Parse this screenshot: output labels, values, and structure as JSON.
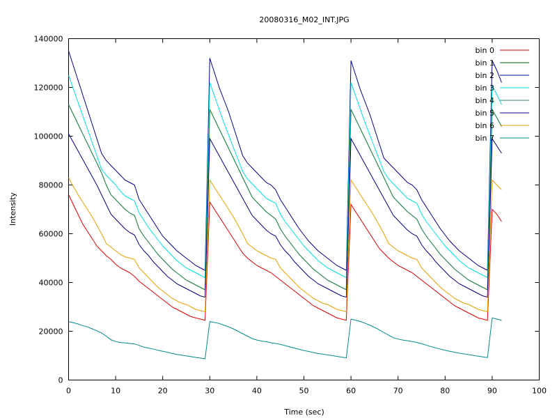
{
  "chart_data": {
    "type": "line",
    "title": "20080316_M02_INT.JPG",
    "xlabel": "Time (sec)",
    "ylabel": "Intensity",
    "xlim": [
      0,
      100
    ],
    "ylim": [
      0,
      140000
    ],
    "x_ticks": [
      0,
      10,
      20,
      30,
      40,
      50,
      60,
      70,
      80,
      90,
      100
    ],
    "y_ticks": [
      0,
      20000,
      40000,
      60000,
      80000,
      100000,
      120000,
      140000
    ],
    "grid": false,
    "legend_position": "top-right",
    "series": [
      {
        "name": "bin 0",
        "color": "#dd0000",
        "values": [
          76000,
          72000,
          68000,
          64000,
          61000,
          58000,
          55000,
          53000,
          51000,
          49500,
          47500,
          46000,
          45000,
          44000,
          42500,
          40500,
          39000,
          37500,
          36000,
          34500,
          33000,
          31500,
          30000,
          29000,
          28000,
          27000,
          26000,
          25500,
          25000,
          24500,
          73000,
          70000,
          67000,
          64000,
          61000,
          58000,
          55000,
          52000,
          50000,
          48500,
          47000,
          46000,
          45000,
          44000,
          42500,
          41000,
          39500,
          38000,
          36500,
          35000,
          33500,
          32000,
          30500,
          29500,
          28500,
          27500,
          26500,
          25500,
          25000,
          24500,
          72000,
          69000,
          66000,
          63000,
          60000,
          57000,
          54000,
          52000,
          50000,
          48500,
          47000,
          46000,
          45000,
          44000,
          42500,
          41000,
          39500,
          38000,
          36500,
          35000,
          33500,
          32000,
          30500,
          29500,
          28500,
          27500,
          26500,
          25500,
          25000,
          24500,
          70000,
          68000,
          65000
        ]
      },
      {
        "name": "bin 1",
        "color": "#006400",
        "values": [
          113000,
          109000,
          105000,
          101000,
          97000,
          93000,
          89000,
          85000,
          80000,
          76000,
          74000,
          72000,
          70000,
          68500,
          67500,
          62000,
          59000,
          56500,
          54000,
          51500,
          49500,
          47500,
          45500,
          44000,
          42500,
          41000,
          40000,
          39000,
          38000,
          37000,
          111000,
          107000,
          103000,
          99000,
          95000,
          91000,
          87000,
          83000,
          79000,
          75000,
          73000,
          71000,
          69000,
          67500,
          66000,
          62000,
          59000,
          56500,
          54000,
          51500,
          49500,
          47500,
          45500,
          44000,
          42500,
          41000,
          40000,
          39000,
          38000,
          37000,
          111000,
          107000,
          103000,
          99000,
          95000,
          91000,
          87000,
          83000,
          79000,
          75000,
          73000,
          71000,
          69000,
          67500,
          66000,
          62000,
          59000,
          56500,
          54000,
          51500,
          49500,
          47500,
          45500,
          44000,
          42500,
          41000,
          40000,
          39000,
          38000,
          37000,
          111000,
          107500,
          104000
        ]
      },
      {
        "name": "bin 2",
        "color": "#00008b",
        "values": [
          135000,
          129000,
          123000,
          117000,
          111000,
          105000,
          99000,
          93000,
          90000,
          88000,
          86000,
          84000,
          82000,
          81000,
          80000,
          74000,
          71000,
          68000,
          65000,
          62000,
          59000,
          57000,
          55000,
          53000,
          51500,
          50000,
          48500,
          47000,
          46000,
          45000,
          132000,
          126000,
          120000,
          115000,
          110000,
          104000,
          98000,
          92000,
          89000,
          87000,
          85000,
          83000,
          81000,
          80000,
          78000,
          74000,
          71000,
          68000,
          65000,
          62000,
          59500,
          57000,
          55000,
          53000,
          51500,
          50000,
          48500,
          47000,
          46000,
          45000,
          131000,
          125000,
          119000,
          114000,
          109000,
          103000,
          97000,
          91000,
          89000,
          87000,
          85000,
          83000,
          81000,
          80000,
          78000,
          74000,
          71000,
          68000,
          65000,
          62000,
          59500,
          57000,
          55000,
          53000,
          51500,
          50000,
          48500,
          47000,
          46000,
          45000,
          131000,
          127000,
          122000
        ]
      },
      {
        "name": "bin 3",
        "color": "#00dddd",
        "values": [
          125000,
          119500,
          114000,
          108500,
          103000,
          97500,
          92000,
          86500,
          84000,
          82000,
          80000,
          77500,
          75500,
          74500,
          73500,
          68500,
          65500,
          62500,
          60000,
          57500,
          55000,
          53000,
          51000,
          49000,
          47500,
          46000,
          45000,
          44000,
          43000,
          42000,
          122000,
          116500,
          111000,
          105500,
          100500,
          95500,
          90500,
          85500,
          82500,
          80500,
          78500,
          76500,
          74500,
          73500,
          72500,
          68000,
          65000,
          62500,
          60000,
          57500,
          55000,
          53000,
          51000,
          49000,
          47500,
          46000,
          45000,
          44000,
          43000,
          42000,
          122000,
          116500,
          111000,
          105500,
          100500,
          95500,
          90500,
          85500,
          82500,
          80500,
          78500,
          76500,
          74500,
          73500,
          72500,
          68000,
          65000,
          62500,
          60000,
          57500,
          55000,
          53000,
          51000,
          49000,
          47500,
          46000,
          45000,
          44000,
          43000,
          42000,
          121000,
          117000,
          113000
        ]
      },
      {
        "name": "bin 4",
        "color": "#2e8b57",
        "values": [
          113000,
          109000,
          105000,
          101000,
          97000,
          93000,
          89000,
          85000,
          80000,
          76000,
          74000,
          72000,
          70000,
          68500,
          67500,
          62000,
          59000,
          56500,
          54000,
          51500,
          49500,
          47500,
          45500,
          44000,
          42500,
          41000,
          40000,
          39000,
          38000,
          37000,
          111000,
          107000,
          103000,
          99000,
          95000,
          91000,
          87000,
          83000,
          79000,
          75000,
          73000,
          71000,
          69000,
          67500,
          66000,
          62000,
          59000,
          56500,
          54000,
          51500,
          49500,
          47500,
          45500,
          44000,
          42500,
          41000,
          40000,
          39000,
          38000,
          37000,
          111000,
          107000,
          103000,
          99000,
          95000,
          91000,
          87000,
          83000,
          79000,
          75000,
          73000,
          71000,
          69000,
          67500,
          66000,
          62000,
          59000,
          56500,
          54000,
          51500,
          49500,
          47500,
          45500,
          44000,
          42500,
          41000,
          40000,
          39000,
          38000,
          37000,
          111000,
          107500,
          104000
        ]
      },
      {
        "name": "bin 5",
        "color": "#000080",
        "values": [
          101000,
          97500,
          94000,
          90500,
          87000,
          83500,
          80000,
          76000,
          72000,
          68000,
          66000,
          64000,
          62000,
          60500,
          59500,
          55500,
          53000,
          51000,
          48500,
          46500,
          44500,
          42500,
          41000,
          39500,
          38500,
          37500,
          36500,
          35500,
          34500,
          34000,
          99000,
          95500,
          92000,
          88500,
          85000,
          81500,
          78000,
          74500,
          71000,
          67500,
          65500,
          63500,
          61500,
          60000,
          59000,
          55500,
          53000,
          51000,
          48500,
          46500,
          44500,
          42500,
          41000,
          39500,
          38500,
          37500,
          36500,
          35500,
          34500,
          34000,
          99000,
          95500,
          92000,
          88500,
          85000,
          81500,
          78000,
          74500,
          71000,
          67500,
          65500,
          63500,
          61500,
          60000,
          59000,
          55500,
          53000,
          51000,
          48500,
          46500,
          44500,
          42500,
          41000,
          39500,
          38500,
          37500,
          36500,
          35500,
          34500,
          34000,
          99000,
          96000,
          93000
        ]
      },
      {
        "name": "bin 6",
        "color": "#e8a000",
        "values": [
          83000,
          79500,
          76000,
          73000,
          70000,
          67000,
          63500,
          60000,
          56000,
          54500,
          53000,
          51500,
          50500,
          50000,
          49500,
          46000,
          44000,
          42000,
          40000,
          38000,
          36500,
          35000,
          33500,
          32500,
          31500,
          31000,
          30000,
          29000,
          28500,
          28000,
          82000,
          79000,
          76000,
          73000,
          70000,
          67000,
          63500,
          60000,
          56000,
          54500,
          53000,
          52000,
          51000,
          50000,
          49500,
          46000,
          44000,
          42000,
          40000,
          38000,
          36500,
          35000,
          33500,
          32500,
          31500,
          31000,
          30000,
          29000,
          28500,
          28000,
          82000,
          79000,
          76000,
          73000,
          70000,
          67000,
          63500,
          60000,
          56000,
          54500,
          53000,
          52000,
          51000,
          50000,
          49500,
          46000,
          44000,
          42000,
          40000,
          38000,
          36500,
          35000,
          33500,
          32500,
          31500,
          31000,
          30000,
          29000,
          28500,
          28000,
          82000,
          80000,
          78000
        ]
      },
      {
        "name": "bin 7",
        "color": "#008b8b",
        "values": [
          24000,
          23500,
          23000,
          22300,
          21800,
          21000,
          20200,
          19300,
          18000,
          16500,
          15800,
          15400,
          15200,
          15000,
          14800,
          14200,
          13500,
          13100,
          12700,
          12200,
          11800,
          11400,
          10900,
          10500,
          10200,
          9900,
          9600,
          9300,
          9000,
          8700,
          24000,
          23600,
          23200,
          22500,
          21800,
          21000,
          20000,
          19000,
          18000,
          17000,
          16400,
          16000,
          15700,
          15300,
          15000,
          14600,
          14100,
          13600,
          13100,
          12600,
          12100,
          11700,
          11300,
          10900,
          10600,
          10300,
          10000,
          9700,
          9400,
          9100,
          25000,
          24500,
          24000,
          23300,
          22500,
          21600,
          20600,
          19500,
          18400,
          17300,
          16800,
          16400,
          16100,
          15800,
          15400,
          14900,
          14300,
          13700,
          13200,
          12700,
          12200,
          11800,
          11400,
          11000,
          10700,
          10400,
          10100,
          9800,
          9500,
          9200,
          25500,
          25000,
          24500
        ]
      }
    ]
  }
}
